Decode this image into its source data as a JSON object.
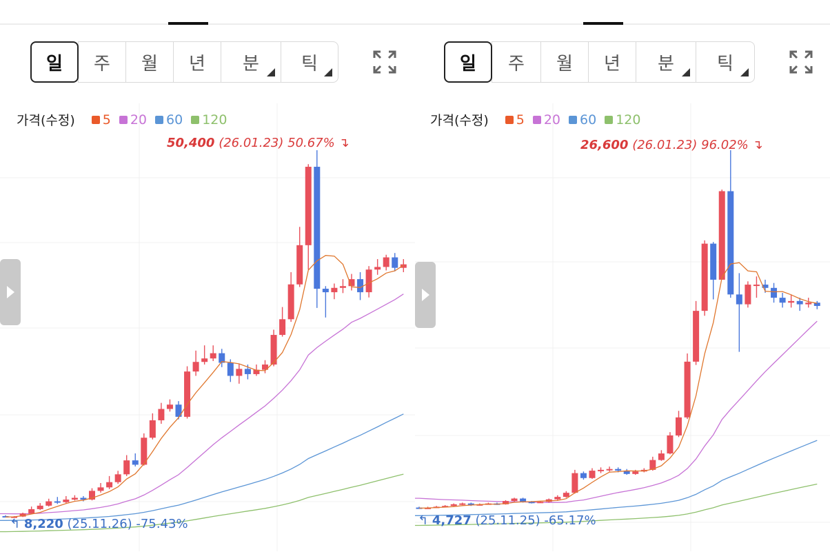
{
  "periods": [
    "일",
    "주",
    "월",
    "년",
    "분",
    "틱"
  ],
  "legend_title": "가격(수정)",
  "ma_legend": [
    {
      "label": "5",
      "color": "#ea5a2a"
    },
    {
      "label": "20",
      "color": "#c773d6"
    },
    {
      "label": "60",
      "color": "#5b95d6"
    },
    {
      "label": "120",
      "color": "#8ec06c"
    }
  ],
  "colors": {
    "up": "#e8505b",
    "down": "#4a78dc",
    "ma5": "#e0772e",
    "ma20": "#c773d6",
    "ma60": "#5b95d6",
    "ma120": "#8ec06c"
  },
  "icons": {
    "expand": "expand-icon",
    "handle": "chevron-right-icon",
    "high_marker": "arrow-down-icon",
    "low_marker": "arrow-up-icon"
  },
  "left": {
    "high": {
      "value": "50,400",
      "info": "(26.01.23) 50.67%",
      "arrow": "↴"
    },
    "low": {
      "value": "8,220",
      "info": "(25.11.26) -75.43%",
      "arrow": "↰"
    }
  },
  "right": {
    "high": {
      "value": "26,600",
      "info": "(26.01.23) 96.02%",
      "arrow": "↴"
    },
    "low": {
      "value": "4,727",
      "info": "(25.11.25) -65.17%",
      "arrow": "↰"
    }
  },
  "chart_data": [
    {
      "type": "candlestick",
      "annotations": [
        "50,400 (26.01.23) 50.67%",
        "8,220 (25.11.26) -75.43%"
      ],
      "price_high": 50400,
      "price_low": 8220,
      "candles": [
        [
          8400,
          8300,
          8500,
          8250
        ],
        [
          8300,
          8350,
          8400,
          8220
        ],
        [
          8350,
          8700,
          8800,
          8300
        ],
        [
          8700,
          9200,
          9500,
          8600
        ],
        [
          9200,
          9600,
          9900,
          9100
        ],
        [
          9600,
          10100,
          10400,
          9500
        ],
        [
          10100,
          10000,
          10600,
          9800
        ],
        [
          10000,
          10300,
          10700,
          9900
        ],
        [
          10300,
          10500,
          10800,
          10200
        ],
        [
          10500,
          10300,
          10700,
          10100
        ],
        [
          10300,
          11300,
          11600,
          10200
        ],
        [
          11300,
          11700,
          12200,
          11100
        ],
        [
          11700,
          12300,
          13000,
          11500
        ],
        [
          12300,
          13200,
          13600,
          12100
        ],
        [
          13200,
          14800,
          15400,
          13000
        ],
        [
          14800,
          14300,
          15600,
          14100
        ],
        [
          14300,
          17400,
          17900,
          14200
        ],
        [
          17400,
          19400,
          20200,
          17200
        ],
        [
          19400,
          20700,
          21400,
          19000
        ],
        [
          20700,
          21200,
          21800,
          20400
        ],
        [
          21200,
          19800,
          21600,
          19500
        ],
        [
          19800,
          25000,
          25600,
          19600
        ],
        [
          25000,
          26100,
          27400,
          24500
        ],
        [
          26100,
          26500,
          28000,
          25800
        ],
        [
          26500,
          27100,
          28000,
          26200
        ],
        [
          27100,
          26000,
          27600,
          25500
        ],
        [
          26000,
          24500,
          26400,
          23800
        ],
        [
          24500,
          25300,
          25900,
          23600
        ],
        [
          25300,
          24700,
          25800,
          24100
        ],
        [
          24700,
          25200,
          25800,
          24500
        ],
        [
          25200,
          25800,
          26300,
          24800
        ],
        [
          25800,
          29200,
          29800,
          25600
        ],
        [
          29200,
          31000,
          32400,
          29000
        ],
        [
          31000,
          35000,
          36400,
          30700
        ],
        [
          35000,
          39500,
          41600,
          34700
        ],
        [
          39500,
          48500,
          48800,
          36700
        ],
        [
          48500,
          34500,
          50400,
          32300
        ],
        [
          34500,
          34100,
          34800,
          31200
        ],
        [
          34100,
          34600,
          35100,
          33300
        ],
        [
          34600,
          34800,
          35600,
          34000
        ],
        [
          34800,
          35600,
          36200,
          34300
        ],
        [
          35600,
          34100,
          36400,
          33200
        ],
        [
          34100,
          36700,
          37100,
          33500
        ],
        [
          36700,
          37000,
          37900,
          36100
        ],
        [
          37000,
          38100,
          38400,
          36600
        ],
        [
          38100,
          36900,
          38600,
          36500
        ],
        [
          36900,
          37300,
          37900,
          36400
        ]
      ]
    },
    {
      "type": "candlestick",
      "annotations": [
        "26,600 (26.01.23) 96.02%",
        "4,727 (25.11.25) -65.17%"
      ],
      "price_high": 26600,
      "price_low": 4727,
      "candles": [
        [
          4800,
          4760,
          4850,
          4727
        ],
        [
          4760,
          4790,
          4850,
          4740
        ],
        [
          4790,
          4850,
          4900,
          4780
        ],
        [
          4850,
          4900,
          4950,
          4820
        ],
        [
          4900,
          5000,
          5050,
          4880
        ],
        [
          5000,
          5050,
          5100,
          4950
        ],
        [
          5050,
          4950,
          5100,
          4900
        ],
        [
          4950,
          5000,
          5050,
          4920
        ],
        [
          5000,
          5050,
          5100,
          4980
        ],
        [
          5050,
          5000,
          5100,
          4960
        ],
        [
          5000,
          5200,
          5250,
          4980
        ],
        [
          5200,
          5350,
          5400,
          5150
        ],
        [
          5350,
          5150,
          5400,
          5100
        ],
        [
          5150,
          5100,
          5200,
          5050
        ],
        [
          5100,
          5150,
          5200,
          5080
        ],
        [
          5150,
          5300,
          5350,
          5100
        ],
        [
          5300,
          5450,
          5550,
          5250
        ],
        [
          5450,
          5700,
          5800,
          5400
        ],
        [
          5700,
          6900,
          7100,
          5650
        ],
        [
          6900,
          6600,
          7000,
          6500
        ],
        [
          6600,
          7050,
          7200,
          6550
        ],
        [
          7050,
          7100,
          7250,
          6900
        ],
        [
          7100,
          7150,
          7300,
          7000
        ],
        [
          7150,
          7050,
          7250,
          6950
        ],
        [
          7050,
          6850,
          7150,
          6800
        ],
        [
          6850,
          7000,
          7100,
          6800
        ],
        [
          7000,
          7100,
          7200,
          6950
        ],
        [
          7100,
          7700,
          7900,
          7050
        ],
        [
          7700,
          8100,
          8300,
          7650
        ],
        [
          8100,
          9200,
          9400,
          8050
        ],
        [
          9200,
          10300,
          10700,
          9100
        ],
        [
          10300,
          13700,
          14200,
          10200
        ],
        [
          13700,
          16800,
          17400,
          13500
        ],
        [
          16800,
          20900,
          21100,
          16500
        ],
        [
          20900,
          18700,
          21000,
          17500
        ],
        [
          18700,
          24100,
          24200,
          18700
        ],
        [
          24100,
          17800,
          26600,
          17600
        ],
        [
          17800,
          17200,
          19100,
          14300
        ],
        [
          17200,
          18400,
          18600,
          17000
        ],
        [
          18400,
          18400,
          18900,
          17600
        ],
        [
          18400,
          18200,
          18700,
          17900
        ],
        [
          18200,
          17600,
          18500,
          17300
        ],
        [
          17600,
          17300,
          17900,
          17000
        ],
        [
          17300,
          17400,
          17800,
          17000
        ],
        [
          17400,
          17200,
          17600,
          16800
        ],
        [
          17200,
          17300,
          17600,
          17000
        ],
        [
          17300,
          17100,
          17400,
          16900
        ]
      ]
    }
  ]
}
